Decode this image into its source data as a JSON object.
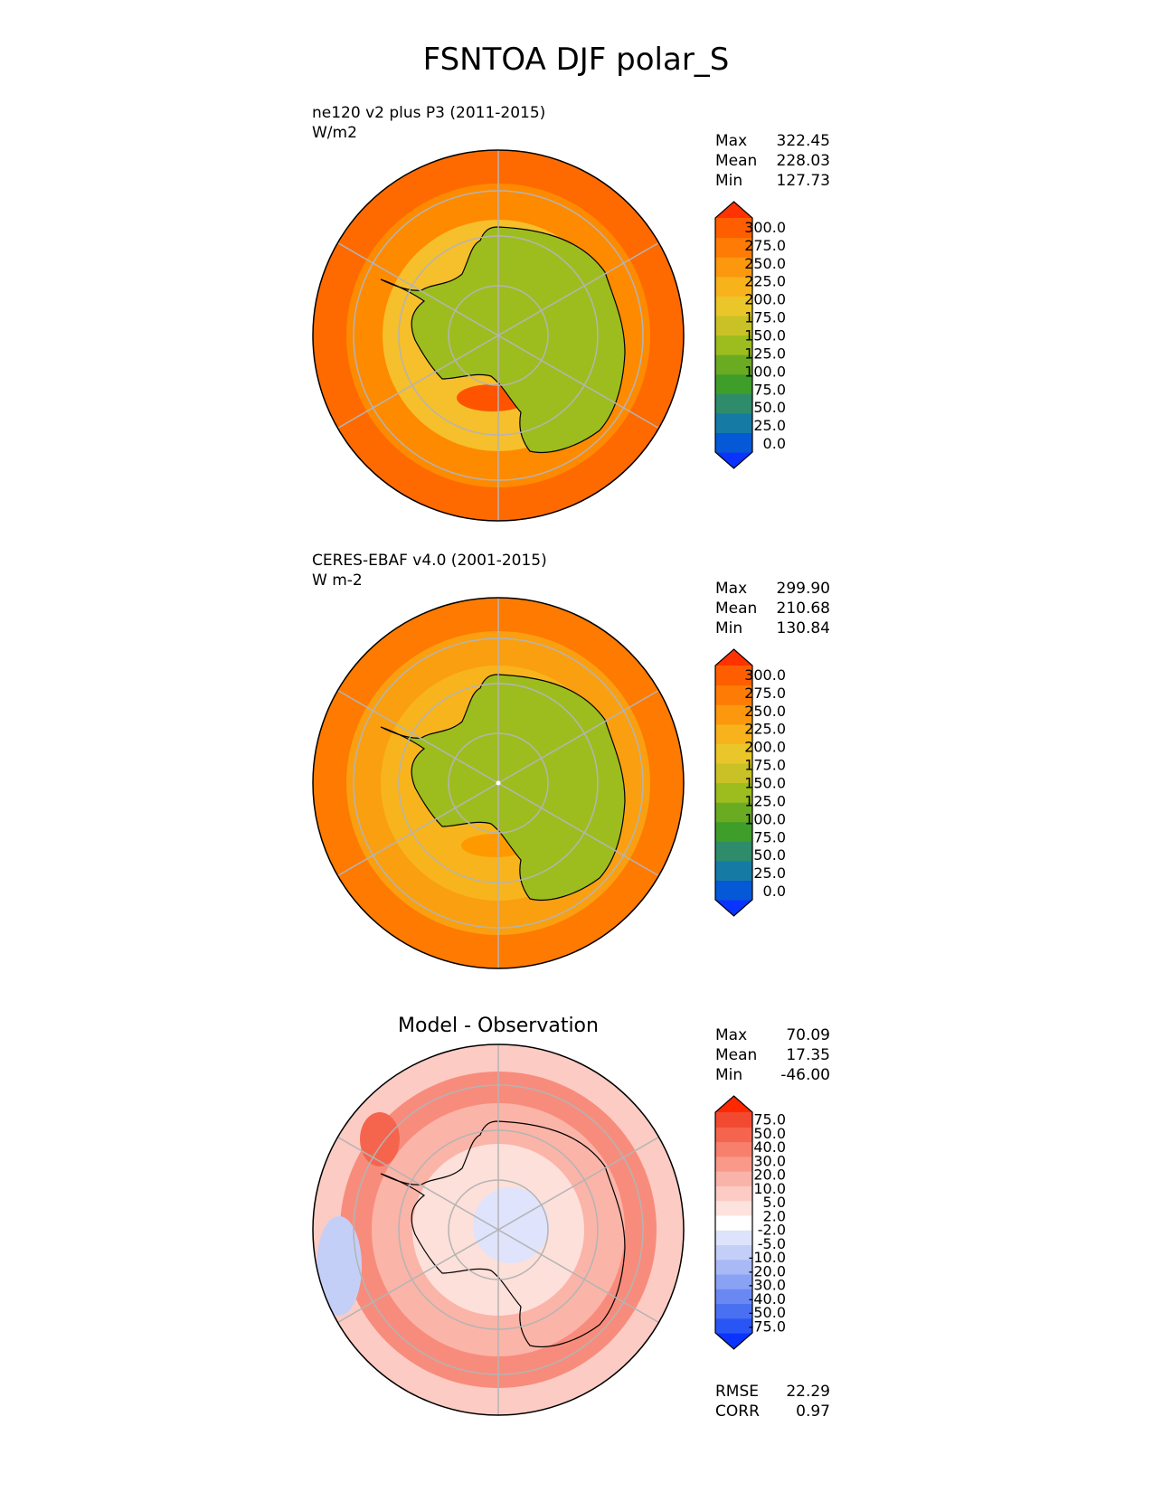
{
  "figure": {
    "title": "FSNTOA DJF polar_S"
  },
  "chart_data": [
    {
      "type": "heatmap",
      "projection": "south-polar-stereographic",
      "title": "ne120 v2 plus P3 (2011-2015)",
      "units": "W/m2",
      "stats": [
        {
          "label": "Max",
          "value": "322.45"
        },
        {
          "label": "Mean",
          "value": "228.03"
        },
        {
          "label": "Min",
          "value": "127.73"
        }
      ],
      "colorbar": {
        "ticks": [
          "300.0",
          "275.0",
          "250.0",
          "225.0",
          "200.0",
          "175.0",
          "150.0",
          "125.0",
          "100.0",
          "75.0",
          "50.0",
          "25.0",
          "0.0"
        ],
        "colors": [
          "#0a33ff",
          "#0558d6",
          "#157ba5",
          "#2e8c6a",
          "#3f9d2a",
          "#6aab22",
          "#9dbd1e",
          "#c8c226",
          "#eac62a",
          "#f8b21c",
          "#fb980e",
          "#fe7c05",
          "#fe5e00",
          "#ff3200"
        ],
        "extend": "both"
      },
      "fill": {
        "ocean_outer": "#fe6a00",
        "ocean_mid": "#fe8a00",
        "sea_ice": "#f6bf2c",
        "continent": "#9dbd1e"
      }
    },
    {
      "type": "heatmap",
      "projection": "south-polar-stereographic",
      "title": "CERES-EBAF v4.0 (2001-2015)",
      "units": "W m-2",
      "stats": [
        {
          "label": "Max",
          "value": "299.90"
        },
        {
          "label": "Mean",
          "value": "210.68"
        },
        {
          "label": "Min",
          "value": "130.84"
        }
      ],
      "colorbar": {
        "ticks": [
          "300.0",
          "275.0",
          "250.0",
          "225.0",
          "200.0",
          "175.0",
          "150.0",
          "125.0",
          "100.0",
          "75.0",
          "50.0",
          "25.0",
          "0.0"
        ],
        "colors": [
          "#0a33ff",
          "#0558d6",
          "#157ba5",
          "#2e8c6a",
          "#3f9d2a",
          "#6aab22",
          "#9dbd1e",
          "#c8c226",
          "#eac62a",
          "#f8b21c",
          "#fb980e",
          "#fe7c05",
          "#fe5e00",
          "#ff3200"
        ],
        "extend": "both"
      },
      "fill": {
        "ocean_outer": "#fe7a00",
        "ocean_mid": "#fa9f10",
        "sea_ice": "#f8b41c",
        "continent": "#9dbd1e"
      }
    },
    {
      "type": "heatmap",
      "projection": "south-polar-stereographic",
      "title": "Model - Observation",
      "units": "",
      "stats": [
        {
          "label": "Max",
          "value": "70.09"
        },
        {
          "label": "Mean",
          "value": "17.35"
        },
        {
          "label": "Min",
          "value": "-46.00"
        }
      ],
      "footer_stats": [
        {
          "label": "RMSE",
          "value": "22.29"
        },
        {
          "label": "CORR",
          "value": "0.97"
        }
      ],
      "colorbar": {
        "ticks": [
          "75.0",
          "50.0",
          "40.0",
          "30.0",
          "20.0",
          "10.0",
          "5.0",
          "2.0",
          "-2.0",
          "-5.0",
          "-10.0",
          "-20.0",
          "-30.0",
          "-40.0",
          "-50.0",
          "-75.0"
        ],
        "colors": [
          "#0a33ff",
          "#2a55f5",
          "#4a70f2",
          "#6a88f2",
          "#8aa2f4",
          "#a8b9f6",
          "#c4cff8",
          "#dde3fa",
          "#ffffff",
          "#fde2de",
          "#fccbc3",
          "#fab3a8",
          "#f9998a",
          "#f7806c",
          "#f5654e",
          "#f24a30",
          "#ff2800"
        ],
        "extend": "both"
      },
      "fill": {
        "ring": "#f88c7c",
        "mid": "#fbb4a8",
        "inner": "#fde0da",
        "center": "#dfe3fb"
      }
    }
  ]
}
